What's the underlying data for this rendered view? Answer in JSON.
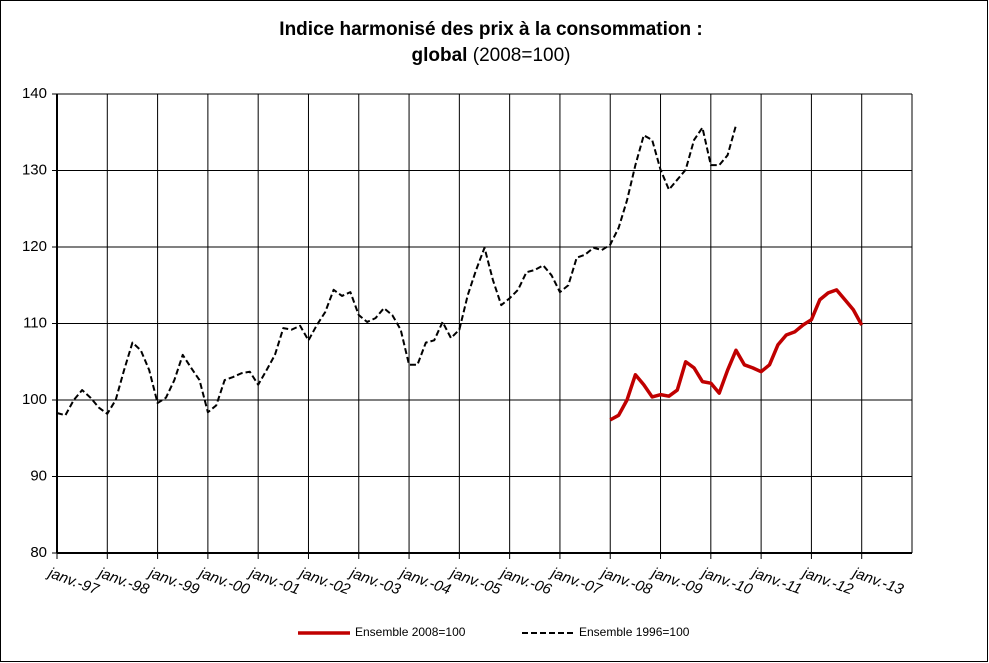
{
  "chart_data": {
    "type": "line",
    "title": [
      "Indice harmonisé des prix à la consommation :",
      "global",
      "(2008=100)"
    ],
    "xlim": [
      "1997-01",
      "2014-01"
    ],
    "xticks": [
      {
        "value": "1997-01",
        "label": "janv.-97"
      },
      {
        "value": "1998-01",
        "label": "janv.-98"
      },
      {
        "value": "1999-01",
        "label": "janv.-99"
      },
      {
        "value": "2000-01",
        "label": "janv.-00"
      },
      {
        "value": "2001-01",
        "label": "janv.-01"
      },
      {
        "value": "2002-01",
        "label": "janv.-02"
      },
      {
        "value": "2003-01",
        "label": "janv.-03"
      },
      {
        "value": "2004-01",
        "label": "janv.-04"
      },
      {
        "value": "2005-01",
        "label": "janv.-05"
      },
      {
        "value": "2006-01",
        "label": "janv.-06"
      },
      {
        "value": "2007-01",
        "label": "janv.-07"
      },
      {
        "value": "2008-01",
        "label": "janv.-08"
      },
      {
        "value": "2009-01",
        "label": "janv.-09"
      },
      {
        "value": "2010-01",
        "label": "janv.-10"
      },
      {
        "value": "2011-01",
        "label": "janv.-11"
      },
      {
        "value": "2012-01",
        "label": "janv.-12"
      },
      {
        "value": "2013-01",
        "label": "janv.-13"
      }
    ],
    "ylim": [
      80,
      140
    ],
    "yticks": [
      80,
      90,
      100,
      110,
      120,
      130,
      140
    ],
    "grid": true,
    "legend": "bottom",
    "series": [
      {
        "name": "Ensemble 2008=100",
        "color": "#c00000",
        "line_style": "solid",
        "x": [
          "2008-01",
          "2008-03",
          "2008-05",
          "2008-07",
          "2008-09",
          "2008-11",
          "2009-01",
          "2009-03",
          "2009-05",
          "2009-07",
          "2009-09",
          "2009-11",
          "2010-01",
          "2010-03",
          "2010-05",
          "2010-07",
          "2010-09",
          "2010-11",
          "2011-01",
          "2011-03",
          "2011-05",
          "2011-07",
          "2011-09",
          "2011-11",
          "2012-01",
          "2012-03",
          "2012-05",
          "2012-07",
          "2012-09",
          "2012-11",
          "2013-01"
        ],
        "values": [
          97.4,
          98,
          100,
          103.3,
          102,
          100.4,
          100.7,
          100.5,
          101.3,
          105,
          104.2,
          102.4,
          102.2,
          100.9,
          103.9,
          106.5,
          104.6,
          104.2,
          103.7,
          104.6,
          107.2,
          108.5,
          108.9,
          109.8,
          110.5,
          113.1,
          114,
          114.4,
          113.1,
          111.8,
          109.8
        ]
      },
      {
        "name": "Ensemble 1996=100",
        "color": "#000000",
        "line_style": "dashed",
        "x": [
          "1997-01",
          "1997-03",
          "1997-05",
          "1997-07",
          "1997-09",
          "1997-11",
          "1998-01",
          "1998-03",
          "1998-05",
          "1998-07",
          "1998-09",
          "1998-11",
          "1999-01",
          "1999-03",
          "1999-05",
          "1999-07",
          "1999-09",
          "1999-11",
          "2000-01",
          "2000-03",
          "2000-05",
          "2000-07",
          "2000-09",
          "2000-11",
          "2001-01",
          "2001-03",
          "2001-05",
          "2001-07",
          "2001-09",
          "2001-11",
          "2002-01",
          "2002-03",
          "2002-05",
          "2002-07",
          "2002-09",
          "2002-11",
          "2003-01",
          "2003-03",
          "2003-05",
          "2003-07",
          "2003-09",
          "2003-11",
          "2004-01",
          "2004-03",
          "2004-05",
          "2004-07",
          "2004-09",
          "2004-11",
          "2005-01",
          "2005-03",
          "2005-05",
          "2005-07",
          "2005-09",
          "2005-11",
          "2006-01",
          "2006-03",
          "2006-05",
          "2006-07",
          "2006-09",
          "2006-11",
          "2007-01",
          "2007-03",
          "2007-05",
          "2007-07",
          "2007-09",
          "2007-11",
          "2008-01",
          "2008-03",
          "2008-05",
          "2008-07",
          "2008-09",
          "2008-11",
          "2009-01",
          "2009-03",
          "2009-05",
          "2009-07",
          "2009-09",
          "2009-11",
          "2010-01",
          "2010-03",
          "2010-05",
          "2010-07"
        ],
        "values": [
          98.3,
          98,
          100,
          101.3,
          100.3,
          99,
          98.2,
          100,
          103.9,
          107.5,
          106.5,
          103.9,
          99.6,
          100.3,
          102.6,
          105.9,
          104.2,
          102.6,
          98.4,
          99.3,
          102.6,
          103,
          103.5,
          103.7,
          102,
          103.9,
          105.9,
          109.4,
          109.2,
          109.7,
          107.8,
          109.8,
          111.5,
          114.4,
          113.6,
          114.1,
          111.1,
          110.2,
          110.7,
          112,
          111.1,
          109.2,
          104.6,
          104.6,
          107.5,
          107.8,
          110.2,
          108.1,
          109.2,
          113.7,
          117,
          119.9,
          115.7,
          112.4,
          113.3,
          114.4,
          116.7,
          117,
          117.6,
          116.3,
          114.1,
          115,
          118.6,
          119,
          119.9,
          119.6,
          120.3,
          122.5,
          126.1,
          130.7,
          134.6,
          134,
          130.1,
          127.5,
          128.8,
          130.1,
          134,
          135.6,
          130.7,
          130.7,
          132,
          135.9
        ]
      }
    ]
  }
}
